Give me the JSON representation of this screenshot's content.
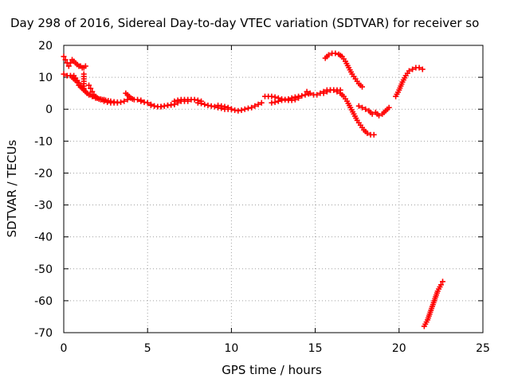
{
  "chart_data": {
    "type": "scatter",
    "title": "Day 298 of 2016, Sidereal Day-to-day VTEC variation (SDTVAR) for receiver so",
    "xlabel": "GPS time / hours",
    "ylabel": "SDTVAR / TECUs",
    "xlim": [
      0,
      25
    ],
    "ylim": [
      -70,
      20
    ],
    "x_ticks": [
      0,
      5,
      10,
      15,
      20,
      25
    ],
    "y_ticks": [
      20,
      10,
      0,
      -10,
      -20,
      -30,
      -40,
      -50,
      -60,
      -70
    ],
    "grid": true,
    "legend": "none",
    "marker": "+",
    "color": "#ff0000",
    "series": [
      {
        "x": [
          0.0,
          0.1,
          0.2,
          0.3,
          0.4,
          0.5,
          0.6,
          0.7,
          0.8,
          0.9,
          1.0,
          1.1,
          1.2,
          1.3
        ],
        "values": [
          16.5,
          15.5,
          14.5,
          13.5,
          14.5,
          15.5,
          15.0,
          14.5,
          14.0,
          13.5,
          13.5,
          13.0,
          13.0,
          13.5
        ]
      },
      {
        "x": [
          0.0,
          0.2,
          0.4,
          0.5,
          0.6,
          0.7,
          0.8,
          0.9,
          1.0,
          1.1,
          1.2,
          1.3,
          1.4,
          1.5,
          1.7,
          1.9,
          2.1,
          2.3,
          2.5,
          2.8,
          3.0,
          3.2
        ],
        "values": [
          11.0,
          10.5,
          10.5,
          10.0,
          9.5,
          9.0,
          8.5,
          7.5,
          7.0,
          6.5,
          6.0,
          5.5,
          5.0,
          4.5,
          4.0,
          3.5,
          3.2,
          3.0,
          2.8,
          2.5,
          2.3,
          2.2
        ]
      },
      {
        "x": [
          1.2,
          1.2,
          1.2,
          1.2
        ],
        "values": [
          11.0,
          9.5,
          8.0,
          6.5
        ]
      },
      {
        "x": [
          0.6,
          0.8,
          1.0,
          1.2,
          1.4,
          1.6,
          1.8,
          2.0,
          2.2,
          2.4
        ],
        "values": [
          10.5,
          9.0,
          7.5,
          6.0,
          5.0,
          4.5,
          4.0,
          3.5,
          3.2,
          3.0
        ]
      },
      {
        "x": [
          1.5,
          1.6,
          1.7,
          1.8,
          1.9,
          2.0,
          2.2,
          2.4,
          2.6,
          2.8,
          3.0,
          3.2,
          3.4,
          3.6,
          3.8
        ],
        "values": [
          7.5,
          6.5,
          5.5,
          4.5,
          4.0,
          3.5,
          3.0,
          2.5,
          2.2,
          2.0,
          2.0,
          2.0,
          2.2,
          2.5,
          3.0
        ]
      },
      {
        "x": [
          3.7,
          3.8,
          3.9,
          4.0,
          4.1,
          4.2,
          4.4,
          4.6
        ],
        "values": [
          5.0,
          4.5,
          4.0,
          3.5,
          3.2,
          3.0,
          3.0,
          2.8
        ]
      },
      {
        "x": [
          4.6,
          4.8,
          5.0,
          5.2,
          5.4,
          5.6,
          5.8,
          6.0,
          6.2,
          6.4,
          6.6
        ],
        "values": [
          2.5,
          2.2,
          2.0,
          1.5,
          1.0,
          0.8,
          0.8,
          1.0,
          1.2,
          1.3,
          1.5
        ]
      },
      {
        "x": [
          5.2,
          5.4,
          5.6,
          5.8,
          6.0,
          6.2,
          6.4,
          6.6,
          6.8,
          7.0,
          7.2,
          7.4
        ],
        "values": [
          1.2,
          1.0,
          0.8,
          0.8,
          1.0,
          1.2,
          1.4,
          1.5,
          2.0,
          2.5,
          2.5,
          2.5
        ]
      },
      {
        "x": [
          6.6,
          6.8,
          7.0,
          7.2,
          7.4,
          7.6,
          7.8,
          8.0,
          8.2
        ],
        "values": [
          2.5,
          2.8,
          3.0,
          3.0,
          3.0,
          3.0,
          3.0,
          2.8,
          2.5
        ]
      },
      {
        "x": [
          8.0,
          8.2,
          8.4,
          8.6,
          8.8,
          9.0,
          9.2,
          9.4,
          9.6,
          9.8,
          10.0
        ],
        "values": [
          2.0,
          1.8,
          1.5,
          1.2,
          1.0,
          0.8,
          0.5,
          0.3,
          0.0,
          0.0,
          0.0
        ]
      },
      {
        "x": [
          9.2,
          9.4,
          9.6,
          9.8,
          10.0,
          10.2,
          10.4,
          10.6,
          10.8,
          11.0,
          11.2,
          11.4,
          11.6,
          11.8
        ],
        "values": [
          1.2,
          1.0,
          0.8,
          0.5,
          0.0,
          -0.3,
          -0.5,
          -0.3,
          0.0,
          0.3,
          0.5,
          1.0,
          1.5,
          2.0
        ]
      },
      {
        "x": [
          12.0,
          12.2,
          12.4,
          12.6,
          12.8,
          13.0,
          13.2,
          13.4,
          13.6,
          13.8,
          14.0
        ],
        "values": [
          4.0,
          4.0,
          4.0,
          3.8,
          3.5,
          3.2,
          3.0,
          2.8,
          2.8,
          3.0,
          3.5
        ]
      },
      {
        "x": [
          12.4,
          12.6,
          12.8,
          13.0,
          13.2,
          13.4,
          13.6,
          13.8,
          14.0,
          14.2,
          14.4,
          14.6
        ],
        "values": [
          2.0,
          2.2,
          2.5,
          2.8,
          3.0,
          3.2,
          3.5,
          3.8,
          4.0,
          4.2,
          4.5,
          4.8
        ]
      },
      {
        "x": [
          14.5,
          14.7,
          14.9,
          15.1,
          15.3,
          15.5,
          15.7,
          15.9,
          16.1,
          16.3,
          16.5
        ],
        "values": [
          5.5,
          5.0,
          4.5,
          4.5,
          5.0,
          5.5,
          6.0,
          6.0,
          6.0,
          6.0,
          6.0
        ]
      },
      {
        "x": [
          15.5,
          15.7,
          15.9,
          16.1,
          16.3,
          16.5,
          16.7,
          16.9,
          17.1,
          17.3,
          17.5,
          17.7,
          17.9,
          18.1,
          18.3,
          18.5
        ],
        "values": [
          5.0,
          5.5,
          6.0,
          6.0,
          5.5,
          5.0,
          4.0,
          2.5,
          0.5,
          -1.5,
          -3.5,
          -5.0,
          -6.5,
          -7.5,
          -8.0,
          -8.0
        ]
      },
      {
        "x": [
          15.6,
          15.8,
          16.0,
          16.2,
          16.4,
          16.6,
          16.8,
          17.0,
          17.2,
          17.4,
          17.6,
          17.8
        ],
        "values": [
          16.0,
          17.0,
          17.5,
          17.5,
          17.2,
          16.5,
          15.0,
          13.0,
          11.0,
          9.5,
          8.0,
          7.0
        ]
      },
      {
        "x": [
          17.6,
          17.8,
          18.0,
          18.2,
          18.4,
          18.6,
          18.8,
          19.0,
          19.2,
          19.4
        ],
        "values": [
          1.0,
          0.5,
          0.0,
          -0.5,
          -1.5,
          -1.0,
          -2.0,
          -1.5,
          -0.5,
          0.5
        ]
      },
      {
        "x": [
          19.8,
          20.0,
          20.2,
          20.4,
          20.6,
          20.8,
          21.0,
          21.2,
          21.4
        ],
        "values": [
          4.0,
          6.0,
          8.5,
          10.5,
          12.0,
          12.5,
          13.0,
          13.0,
          12.5
        ]
      },
      {
        "x": [
          21.5,
          21.7,
          21.9,
          22.1,
          22.3,
          22.5,
          22.6
        ],
        "values": [
          -68.0,
          -66.0,
          -63.0,
          -60.0,
          -57.0,
          -55.0,
          -54.0
        ]
      }
    ]
  }
}
